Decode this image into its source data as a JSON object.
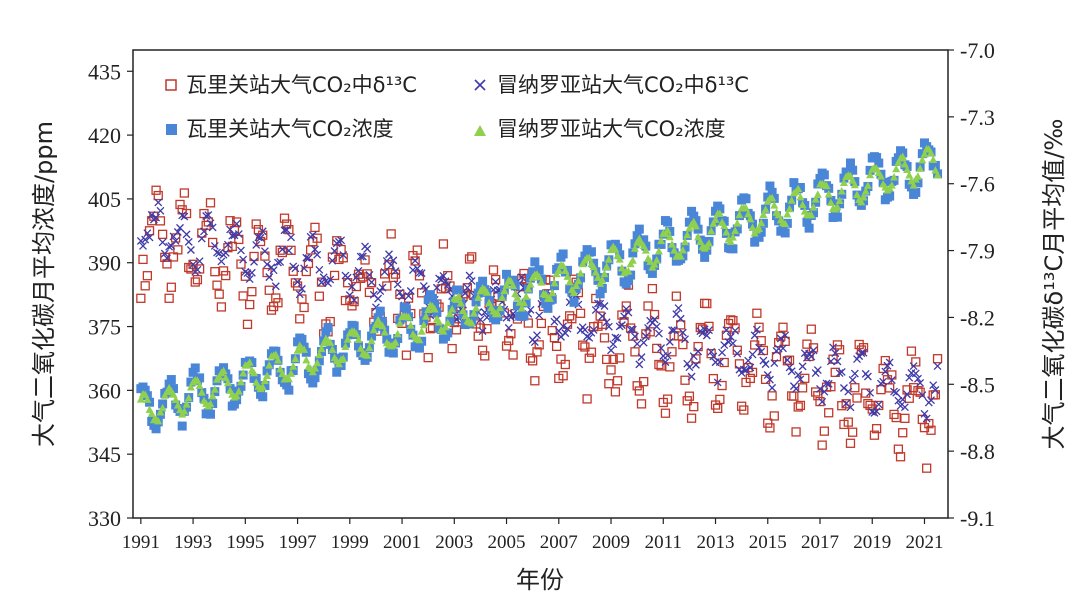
{
  "chart_data": {
    "type": "scatter",
    "xlabel": "年份",
    "ylabel_left": "大气二氧化碳月平均浓度/ppm",
    "ylabel_right": "大气二氧化碳δ¹³C月平均值/‰",
    "xlim": [
      1990.7,
      2021.9
    ],
    "ylim_left": [
      330,
      440
    ],
    "ylim_right": [
      -9.1,
      -7.0
    ],
    "x_ticks": [
      1991,
      1993,
      1995,
      1997,
      1999,
      2001,
      2003,
      2005,
      2007,
      2009,
      2011,
      2013,
      2015,
      2017,
      2019,
      2021
    ],
    "y_left_ticks": [
      330,
      345,
      360,
      375,
      390,
      405,
      420,
      435
    ],
    "y_right_ticks": [
      "-9.1",
      "-8.8",
      "-8.5",
      "-8.2",
      "-7.9",
      "-7.6",
      "-7.3",
      "-7.0"
    ],
    "grid": false,
    "legend_placement": "top",
    "legend": [
      {
        "label": "瓦里关站大气CO₂中δ¹³C",
        "marker": "square-open",
        "color": "#c0392b",
        "axis": "right"
      },
      {
        "label": "冒纳罗亚站大气CO₂中δ¹³C",
        "marker": "x",
        "color": "#3f3aa8",
        "axis": "right"
      },
      {
        "label": "瓦里关站大气CO₂浓度",
        "marker": "square-filled",
        "color": "#4a86d8",
        "axis": "left"
      },
      {
        "label": "冒纳罗亚站大气CO₂浓度",
        "marker": "triangle",
        "color": "#8fd14f",
        "axis": "left"
      }
    ],
    "series": [
      {
        "name": "瓦里关站大气CO₂中δ¹³C",
        "axis": "right",
        "trend_start": [
          1991,
          -7.85
        ],
        "trend_end": [
          2021.5,
          -8.62
        ],
        "seasonal_amplitude": 0.18,
        "year_range": [
          1991,
          2021.5
        ]
      },
      {
        "name": "冒纳罗亚站大气CO₂中δ¹³C",
        "axis": "right",
        "trend_start": [
          1991,
          -7.8
        ],
        "trend_end": [
          2021.5,
          -8.55
        ],
        "seasonal_amplitude": 0.1,
        "year_range": [
          1991,
          2021.5
        ]
      },
      {
        "name": "瓦里关站大气CO₂浓度",
        "axis": "left",
        "trend_start": [
          1991,
          355
        ],
        "trend_end": [
          2021.5,
          414
        ],
        "seasonal_amplitude": 5,
        "year_range": [
          1991,
          2021.5
        ]
      },
      {
        "name": "冒纳罗亚站大气CO₂浓度",
        "axis": "left",
        "trend_start": [
          1991,
          355
        ],
        "trend_end": [
          2021.5,
          414
        ],
        "seasonal_amplitude": 3.5,
        "year_range": [
          1991,
          2021.5
        ]
      }
    ]
  }
}
